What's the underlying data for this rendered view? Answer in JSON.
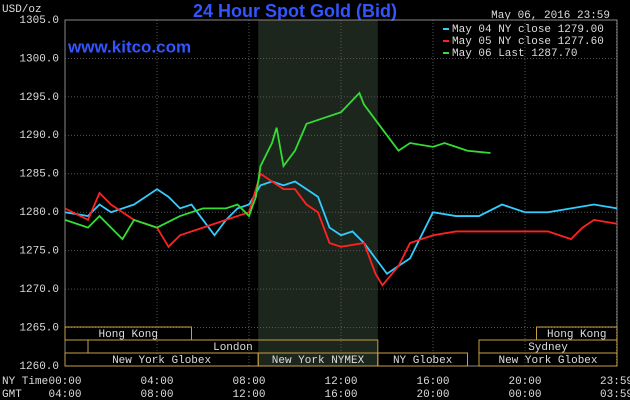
{
  "chart_data": {
    "type": "line",
    "title": "24 Hour Spot Gold (Bid)",
    "subtitle": "www.kitco.com",
    "ylabel": "USD/oz",
    "date": "May 06, 2016 23:59",
    "xlabel": "NY Time",
    "x2label": "GMT",
    "xlim": [
      0,
      24
    ],
    "ylim": [
      1260,
      1305
    ],
    "xticks": [
      {
        "value": 0,
        "label": "00:00"
      },
      {
        "value": 4,
        "label": "04:00"
      },
      {
        "value": 8,
        "label": "08:00"
      },
      {
        "value": 12,
        "label": "12:00"
      },
      {
        "value": 16,
        "label": "16:00"
      },
      {
        "value": 20,
        "label": "20:00"
      },
      {
        "value": 23.98,
        "label": "23:59"
      }
    ],
    "x2ticks": [
      {
        "value": 0,
        "label": "04:00"
      },
      {
        "value": 4,
        "label": "08:00"
      },
      {
        "value": 8,
        "label": "12:00"
      },
      {
        "value": 12,
        "label": "16:00"
      },
      {
        "value": 16,
        "label": "20:00"
      },
      {
        "value": 20,
        "label": "00:00"
      },
      {
        "value": 23.98,
        "label": "03:59"
      }
    ],
    "yticks": [
      {
        "value": 1260,
        "label": "1260.0"
      },
      {
        "value": 1265,
        "label": "1265.0"
      },
      {
        "value": 1270,
        "label": "1270.0"
      },
      {
        "value": 1275,
        "label": "1275.0"
      },
      {
        "value": 1280,
        "label": "1280.0"
      },
      {
        "value": 1285,
        "label": "1285.0"
      },
      {
        "value": 1290,
        "label": "1290.0"
      },
      {
        "value": 1295,
        "label": "1295.0"
      },
      {
        "value": 1300,
        "label": "1300.0"
      },
      {
        "value": 1305,
        "label": "1305.0"
      }
    ],
    "grid": true,
    "highlight": [
      8.4,
      13.6
    ],
    "sessions": [
      {
        "label": "Hong Kong",
        "start": 0,
        "end": 5.5
      },
      {
        "label": "London",
        "start": 1,
        "end": 13.6
      },
      {
        "label": "New York Globex",
        "start": 0,
        "end": 8.4
      },
      {
        "label": "New York NYMEX",
        "start": 8.4,
        "end": 13.6
      },
      {
        "label": "NY Globex",
        "start": 13.6,
        "end": 17.5
      },
      {
        "label": "Sydney",
        "start": 18,
        "end": 24
      },
      {
        "label": "Hong Kong",
        "start": 20.5,
        "end": 24
      },
      {
        "label": "New York Globex",
        "start": 18,
        "end": 24
      }
    ],
    "series": [
      {
        "name": "May 04 NY close 1279.00",
        "color": "#33ccff",
        "x": [
          0,
          1,
          1.5,
          2,
          3,
          3.5,
          4,
          4.5,
          5,
          5.5,
          6,
          6.5,
          7,
          7.5,
          8,
          8.5,
          9,
          9.5,
          10,
          10.5,
          11,
          11.5,
          12,
          12.5,
          13,
          13.5,
          14,
          14.5,
          15,
          15.5,
          16,
          17,
          18,
          19,
          20,
          21,
          22,
          23,
          24
        ],
        "values": [
          1280,
          1279.5,
          1281,
          1280,
          1281,
          1282,
          1283,
          1282,
          1280.5,
          1281,
          1279,
          1277,
          1279,
          1280.5,
          1281,
          1283.5,
          1284,
          1283.5,
          1284,
          1283,
          1282,
          1278,
          1277,
          1277.5,
          1276,
          1274,
          1272,
          1273,
          1274,
          1277,
          1280,
          1279.5,
          1279.5,
          1281,
          1280,
          1280,
          1280.5,
          1281,
          1280.5
        ]
      },
      {
        "name": "May 05 NY close 1277.60",
        "color": "#ff2222",
        "x": [
          0,
          1,
          1.5,
          2,
          3,
          4,
          4.5,
          5,
          6,
          7,
          8,
          8.5,
          9,
          9.5,
          10,
          10.5,
          11,
          11.5,
          12,
          13,
          13.5,
          13.8,
          14.5,
          15,
          16,
          17,
          18,
          19,
          20,
          21,
          21.5,
          22,
          22.5,
          23,
          24
        ],
        "values": [
          1280.5,
          1279,
          1282.5,
          1281,
          1279,
          1278,
          1275.5,
          1277,
          1278,
          1279,
          1280,
          1285,
          1284,
          1283,
          1283,
          1281,
          1280,
          1276,
          1275.5,
          1276,
          1272,
          1270.5,
          1273,
          1276,
          1277,
          1277.5,
          1277.5,
          1277.5,
          1277.5,
          1277.5,
          1277,
          1276.5,
          1278,
          1279,
          1278.5
        ]
      },
      {
        "name": "May 06 Last 1287.70",
        "color": "#33dd33",
        "x": [
          0,
          1,
          1.5,
          2,
          2.5,
          3,
          4,
          5,
          6,
          7,
          7.5,
          8,
          8.3,
          8.5,
          9,
          9.2,
          9.5,
          10,
          10.5,
          11,
          12,
          12.8,
          13,
          13.5,
          14,
          14.5,
          15,
          16,
          16.5,
          17,
          17.5,
          18.5
        ],
        "values": [
          1279,
          1278,
          1279.5,
          1278,
          1276.5,
          1279,
          1278,
          1279.5,
          1280.5,
          1280.5,
          1281,
          1279.5,
          1282,
          1286,
          1289,
          1291,
          1286,
          1288,
          1291.5,
          1292,
          1293,
          1295.5,
          1294,
          1292,
          1290,
          1288,
          1289,
          1288.5,
          1289,
          1288.5,
          1288,
          1287.7
        ]
      }
    ]
  }
}
